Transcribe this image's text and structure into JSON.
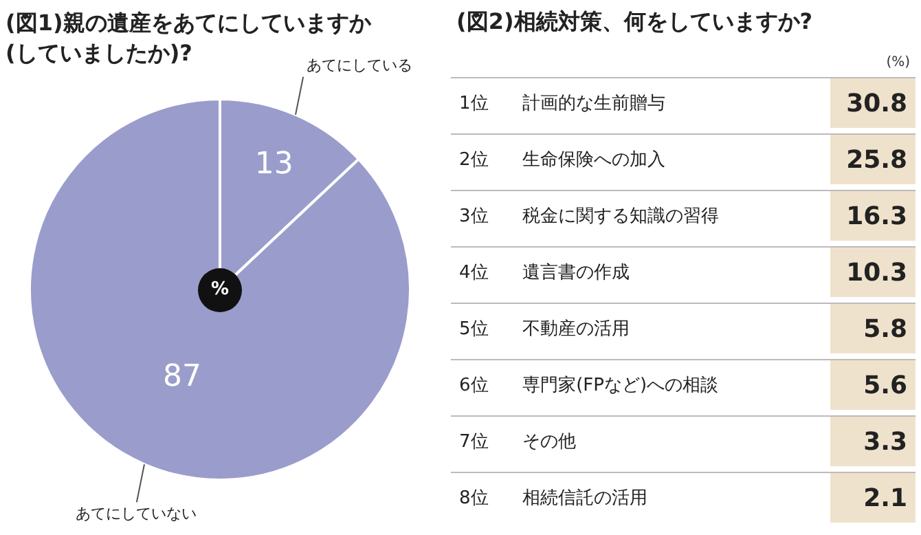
{
  "chart_data": [
    {
      "type": "pie",
      "title": "(図1)親の遺産をあてにしていますか\n(していましたか)?",
      "categories": [
        "あてにしている",
        "あてにしていない"
      ],
      "values": [
        13,
        87
      ],
      "colors": [
        "#9a9dcb",
        "#9a9dcb"
      ],
      "data_labels": true,
      "annotations": [
        "%"
      ]
    },
    {
      "type": "other",
      "title": "(図2)相続対策、何をしていますか?",
      "categories": [
        "1位 計画的な生前贈与",
        "2位 生命保険への加入",
        "3位 税金に関する知識の習得",
        "4位 遺言書の作成",
        "5位 不動産の活用",
        "6位 専門家(FPなど)への相談",
        "7位 その他",
        "8位 相続信託の活用"
      ],
      "values": [
        30.8,
        25.8,
        16.3,
        10.3,
        5.8,
        5.6,
        3.3,
        2.1
      ],
      "color": "#efe2cc",
      "data_labels": true,
      "annotations": [
        "(%)"
      ]
    }
  ]
}
